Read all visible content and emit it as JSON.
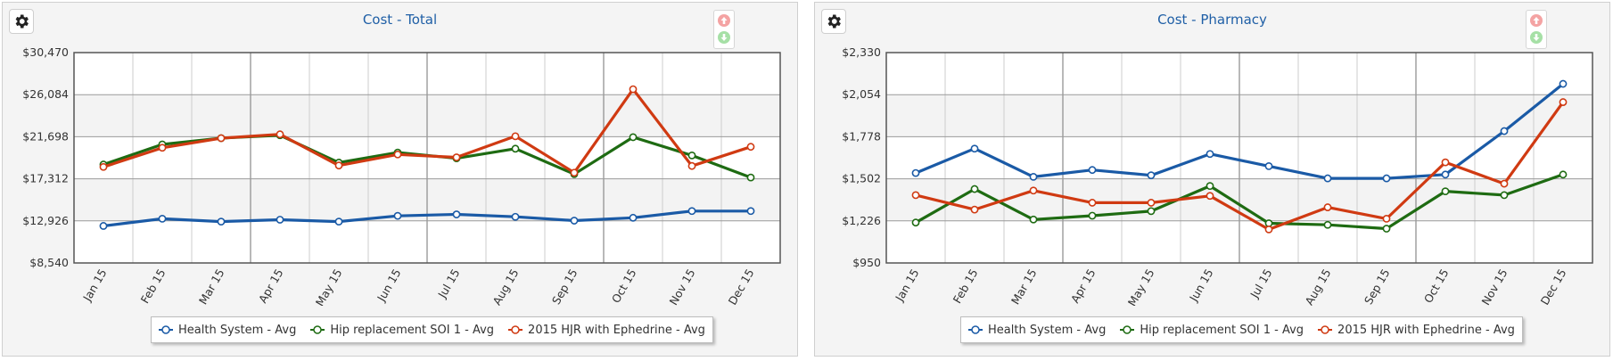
{
  "icons": {
    "settings": "gear-icon",
    "sort_up": "arrow-up-icon",
    "sort_down": "arrow-down-icon"
  },
  "colors": {
    "health_system": "#1a5aa6",
    "hip_replacement": "#1e6b12",
    "hjr_ephedrine": "#d03a12",
    "sort_up": "#f4a3a3",
    "sort_down": "#a6e0a6"
  },
  "chart_data": [
    {
      "type": "line",
      "title": "Cost - Total",
      "categories": [
        "Jan 15",
        "Feb 15",
        "Mar 15",
        "Apr 15",
        "May 15",
        "Jun 15",
        "Jul 15",
        "Aug 15",
        "Sep 15",
        "Oct 15",
        "Nov 15",
        "Dec 15"
      ],
      "ylim": [
        8540,
        30470
      ],
      "yticks": [
        "$30,470",
        "$26,084",
        "$21,698",
        "$17,312",
        "$12,926",
        "$8,540"
      ],
      "grid": true,
      "legend_position": "bottom",
      "series": [
        {
          "name": "Health System - Avg",
          "values": [
            12400,
            13150,
            12850,
            13050,
            12850,
            13450,
            13600,
            13350,
            12950,
            13250,
            13950,
            13950
          ]
        },
        {
          "name": "Hip replacement SOI 1 - Avg",
          "values": [
            18800,
            20900,
            21550,
            21850,
            19000,
            20050,
            19450,
            20450,
            17800,
            21650,
            19750,
            17450
          ]
        },
        {
          "name": "2015 HJR with Ephedrine - Avg",
          "values": [
            18550,
            20550,
            21550,
            21950,
            18700,
            19850,
            19550,
            21750,
            17950,
            26650,
            18650,
            20650
          ]
        }
      ]
    },
    {
      "type": "line",
      "title": "Cost - Pharmacy",
      "categories": [
        "Jan 15",
        "Feb 15",
        "Mar 15",
        "Apr 15",
        "May 15",
        "Jun 15",
        "Jul 15",
        "Aug 15",
        "Sep 15",
        "Oct 15",
        "Nov 15",
        "Dec 15"
      ],
      "ylim": [
        950,
        2330
      ],
      "yticks": [
        "$2,330",
        "$2,054",
        "$1,778",
        "$1,502",
        "$1,226",
        "$950"
      ],
      "grid": true,
      "legend_position": "bottom",
      "series": [
        {
          "name": "Health System - Avg",
          "values": [
            1540,
            1700,
            1515,
            1560,
            1525,
            1665,
            1585,
            1505,
            1505,
            1530,
            1815,
            2125
          ]
        },
        {
          "name": "Hip replacement SOI 1 - Avg",
          "values": [
            1215,
            1435,
            1235,
            1260,
            1290,
            1455,
            1210,
            1200,
            1175,
            1420,
            1395,
            1530
          ]
        },
        {
          "name": "2015 HJR with Ephedrine - Avg",
          "values": [
            1395,
            1300,
            1425,
            1345,
            1345,
            1390,
            1170,
            1315,
            1240,
            1610,
            1470,
            2005
          ]
        }
      ]
    }
  ]
}
